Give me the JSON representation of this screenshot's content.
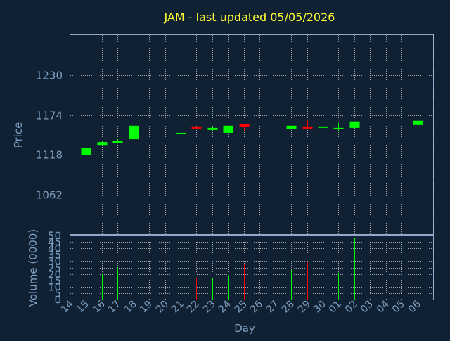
{
  "chart_data": {
    "type": "candlestick",
    "title": "JAM - last updated 05/05/2026",
    "xlabel": "Day",
    "ylabel_price": "Price",
    "ylabel_volume": "Volume (0000)",
    "x_ticks": [
      "14",
      "15",
      "16",
      "17",
      "18",
      "19",
      "20",
      "21",
      "22",
      "23",
      "24",
      "25",
      "26",
      "27",
      "28",
      "29",
      "30",
      "01",
      "02",
      "03",
      "04",
      "05",
      "06"
    ],
    "price_ticks": [
      1230,
      1174,
      1118,
      1062
    ],
    "price_range": [
      1006,
      1286
    ],
    "volume_ticks": [
      0,
      5,
      10,
      15,
      20,
      25,
      30,
      35,
      40,
      45,
      50
    ],
    "volume_range": [
      0,
      50
    ],
    "grid": true,
    "colors": {
      "up": "#00ff00",
      "down": "#ff0000",
      "grid": "#c0c0c0",
      "axis": "#8fa8c8",
      "title": "#ffff33",
      "label": "#7f9fc0",
      "background": "#0f2133"
    },
    "candles": [
      {
        "day": "14",
        "open": 1118,
        "close": 1128,
        "high": 1128,
        "low": 1118,
        "volume": 0
      },
      {
        "day": "15",
        "open": 1132,
        "close": 1136,
        "high": 1137,
        "low": 1132,
        "volume": 20
      },
      {
        "day": "16",
        "open": 1135,
        "close": 1138,
        "high": 1141,
        "low": 1134,
        "volume": 25
      },
      {
        "day": "17",
        "open": 1140,
        "close": 1159,
        "high": 1159,
        "low": 1140,
        "volume": 35
      },
      {
        "day": "20",
        "open": 1148,
        "close": 1149,
        "high": 1157,
        "low": 1147,
        "volume": 27
      },
      {
        "day": "21",
        "open": 1158,
        "close": 1155,
        "high": 1158,
        "low": 1155,
        "volume": 17
      },
      {
        "day": "22",
        "open": 1153,
        "close": 1156,
        "high": 1158,
        "low": 1151,
        "volume": 17
      },
      {
        "day": "23",
        "open": 1149,
        "close": 1159,
        "high": 1159,
        "low": 1149,
        "volume": 19
      },
      {
        "day": "24",
        "open": 1161,
        "close": 1157,
        "high": 1161,
        "low": 1152,
        "volume": 28
      },
      {
        "day": "27",
        "open": 1154,
        "close": 1159,
        "high": 1159,
        "low": 1154,
        "volume": 23
      },
      {
        "day": "28",
        "open": 1158,
        "close": 1155,
        "high": 1168,
        "low": 1155,
        "volume": 29
      },
      {
        "day": "29",
        "open": 1157,
        "close": 1158,
        "high": 1168,
        "low": 1156,
        "volume": 38
      },
      {
        "day": "30",
        "open": 1155,
        "close": 1156,
        "high": 1163,
        "low": 1151,
        "volume": 21
      },
      {
        "day": "01",
        "open": 1156,
        "close": 1165,
        "high": 1165,
        "low": 1156,
        "volume": 48
      },
      {
        "day": "05",
        "open": 1160,
        "close": 1166,
        "high": 1166,
        "low": 1160,
        "volume": 35
      }
    ]
  }
}
